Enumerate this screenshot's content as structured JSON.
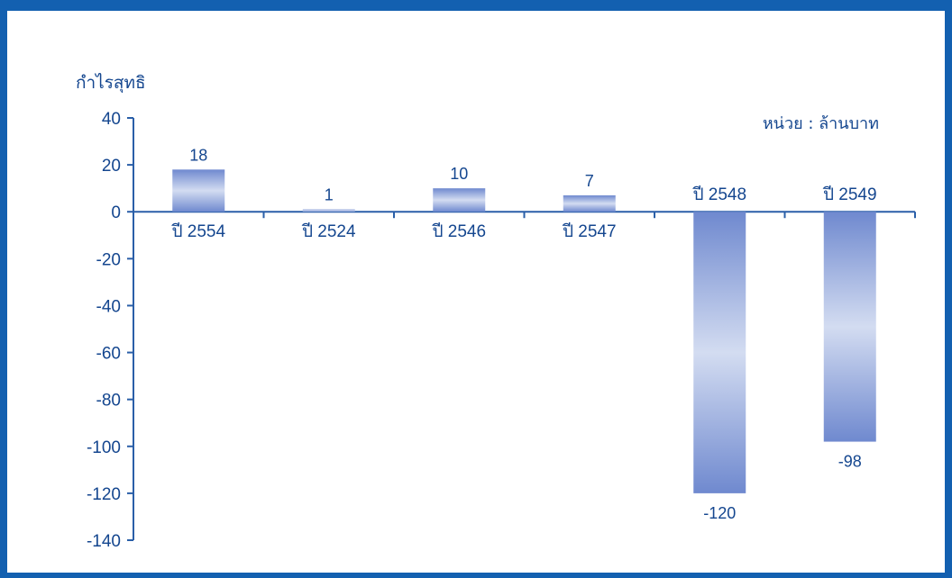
{
  "chart_data": {
    "type": "bar",
    "ylabel": "กำไรสุทธิ",
    "unit_label": "หน่วย : ล้านบาท",
    "categories": [
      "ปี 2554",
      "ปี 2524",
      "ปี 2546",
      "ปี 2547",
      "ปี 2548",
      "ปี 2549"
    ],
    "values": [
      18,
      1,
      10,
      7,
      -120,
      -98
    ],
    "ylim": [
      -140,
      40
    ],
    "yticks": [
      40,
      20,
      0,
      -20,
      -40,
      -60,
      -80,
      -100,
      -120,
      -140
    ],
    "grid": false,
    "legend": "none",
    "colors": {
      "frame": "#1360b0",
      "text": "#14468f",
      "axis": "#2a5fa8",
      "bar_edge": "#6f89cf",
      "bar_mid": "#d3dcf1"
    }
  }
}
